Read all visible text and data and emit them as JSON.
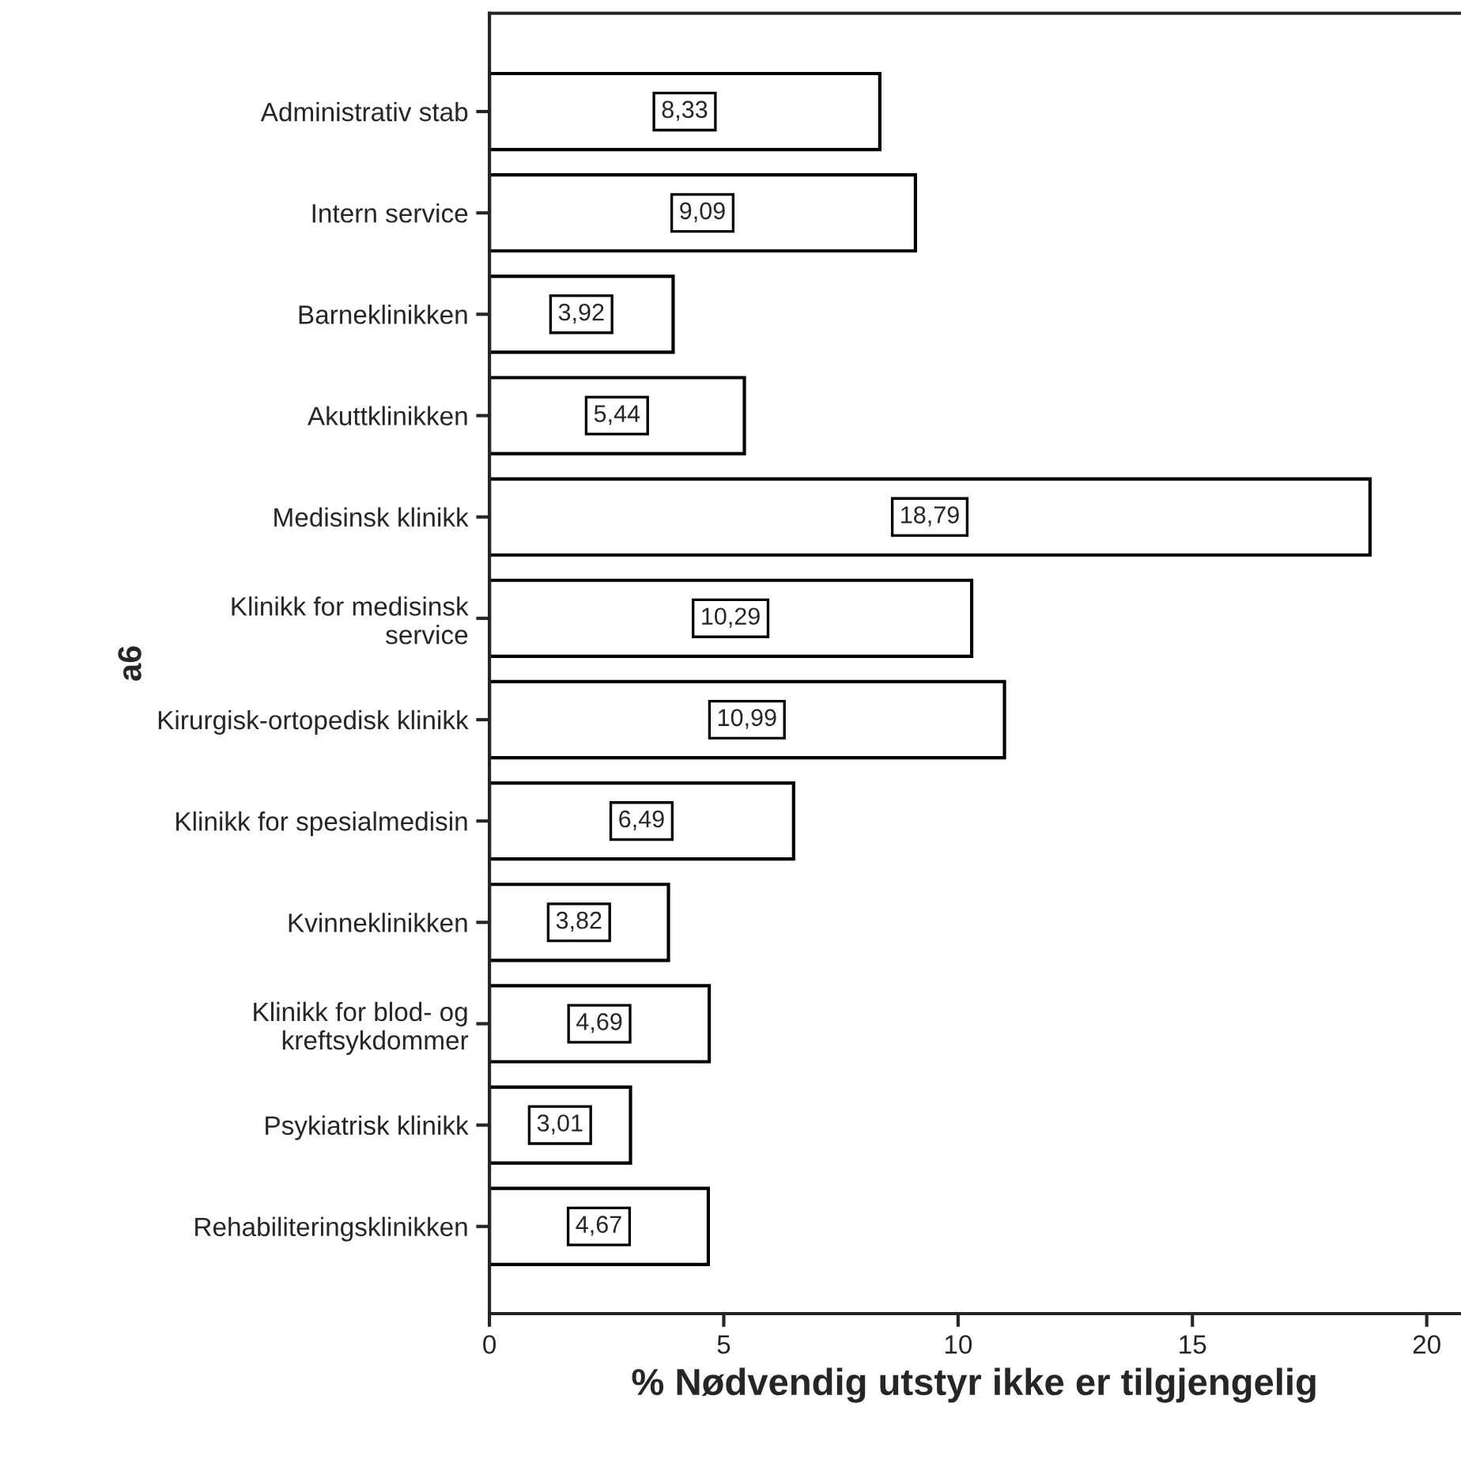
{
  "chart_data": {
    "type": "bar",
    "orientation": "horizontal",
    "xlabel": "% Nødvendig utstyr ikke er tilgjengelig",
    "ylabel": "a6",
    "categories": [
      "Administrativ stab",
      "Intern service",
      "Barneklinikken",
      "Akuttklinikken",
      "Medisinsk klinikk",
      "Klinikk for medisinsk\nservice",
      "Kirurgisk-ortopedisk klinikk",
      "Klinikk for spesialmedisin",
      "Kvinneklinikken",
      "Klinikk for blod- og\nkreftsykdommer",
      "Psykiatrisk klinikk",
      "Rehabiliteringsklinikken"
    ],
    "values": [
      8.33,
      9.09,
      3.92,
      5.44,
      18.79,
      10.29,
      10.99,
      6.49,
      3.82,
      4.69,
      3.01,
      4.67
    ],
    "value_labels": [
      "8,33",
      "9,09",
      "3,92",
      "5,44",
      "18,79",
      "10,29",
      "10,99",
      "6,49",
      "3,82",
      "4,69",
      "3,01",
      "4,67"
    ],
    "color": "#ffffff",
    "xlim": [
      0,
      20.7
    ],
    "xticks": [
      0,
      5,
      10,
      15,
      20
    ],
    "grid": false,
    "legend": false
  }
}
